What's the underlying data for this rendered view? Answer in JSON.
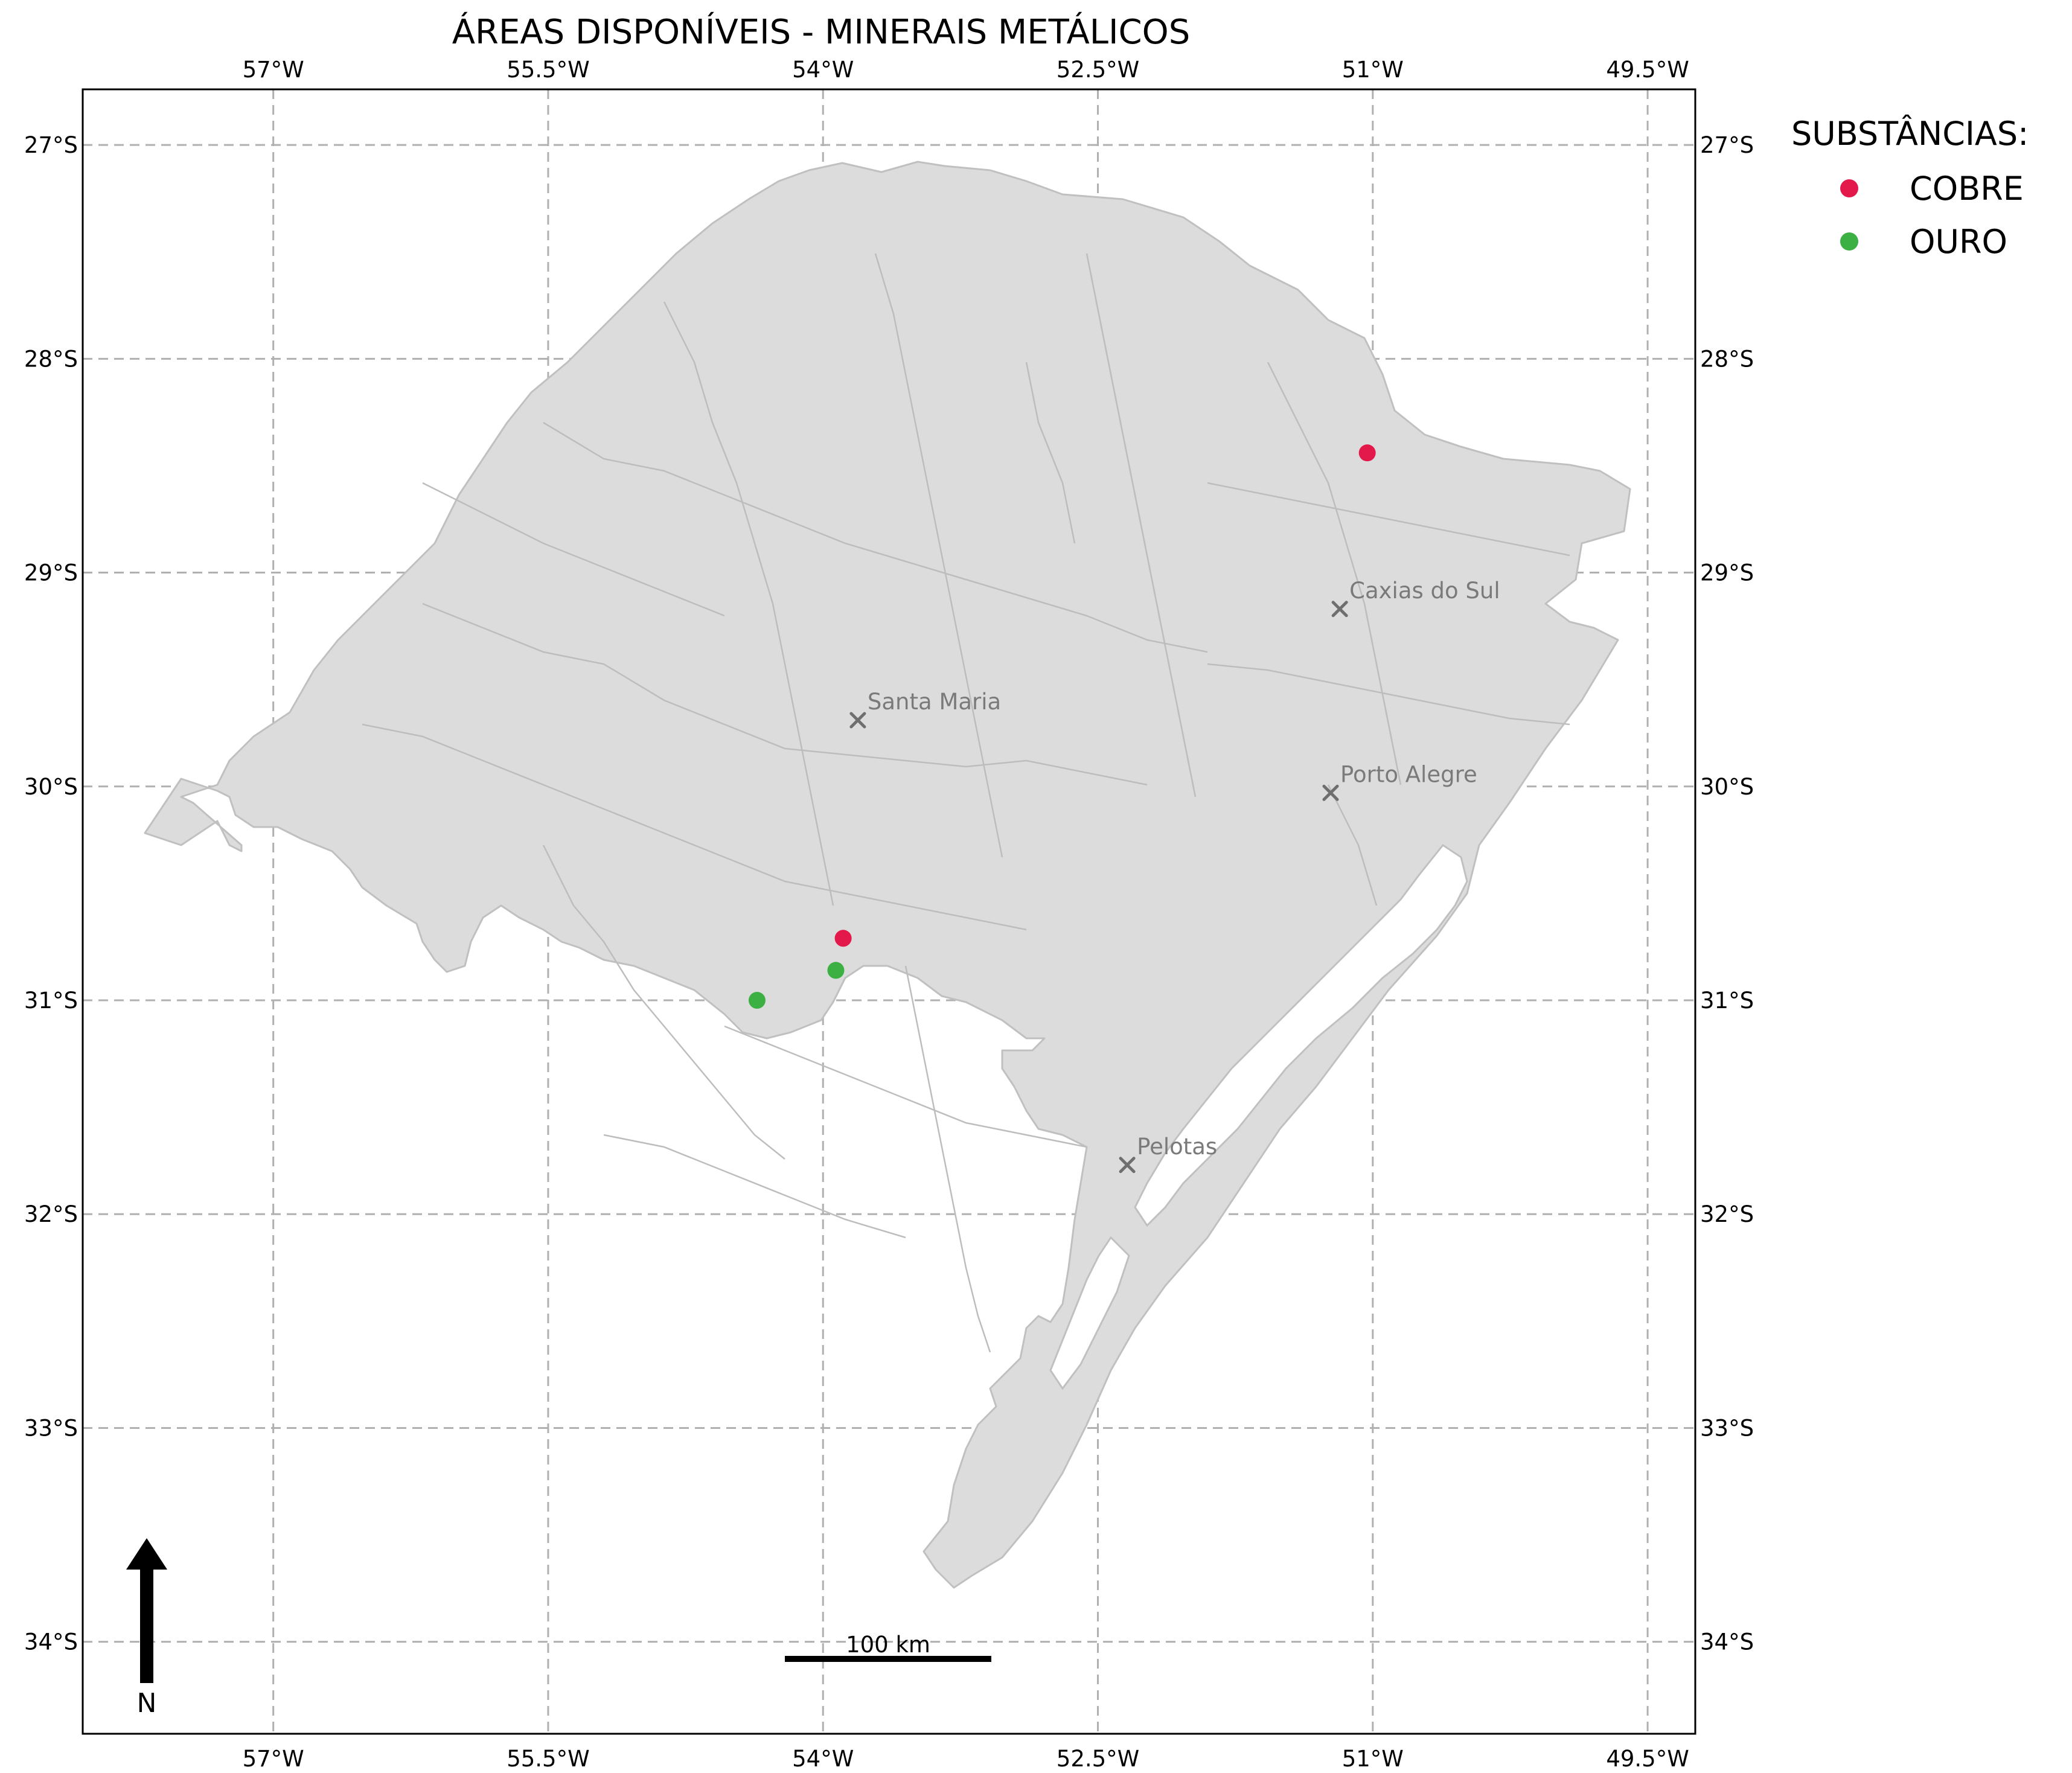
{
  "title": "ÁREAS DISPONÍVEIS - MINERAIS METÁLICOS",
  "axes": {
    "lon_ticks": [
      "57°W",
      "55.5°W",
      "54°W",
      "52.5°W",
      "51°W",
      "49.5°W"
    ],
    "lon_values": [
      -57,
      -55.5,
      -54,
      -52.5,
      -51,
      -49.5
    ],
    "lat_ticks": [
      "27°S",
      "28°S",
      "29°S",
      "30°S",
      "31°S",
      "32°S",
      "33°S",
      "34°S"
    ],
    "lat_values": [
      -27,
      -28,
      -29,
      -30,
      -31,
      -32,
      -33,
      -34
    ],
    "lon_range": [
      -58.04,
      -49.24
    ],
    "lat_range": [
      -34.43,
      -26.74
    ],
    "grid": true
  },
  "cities": [
    {
      "name": "Santa Maria",
      "lon": -53.81,
      "lat": -29.69
    },
    {
      "name": "Caxias do Sul",
      "lon": -51.18,
      "lat": -29.17
    },
    {
      "name": "Porto Alegre",
      "lon": -51.23,
      "lat": -30.03
    },
    {
      "name": "Pelotas",
      "lon": -52.34,
      "lat": -31.77
    }
  ],
  "legend": {
    "title": "SUBSTÂNCIAS:",
    "placement": "outside-right-top",
    "items": [
      {
        "label": "COBRE",
        "color": "#e3194c"
      },
      {
        "label": "OURO",
        "color": "#3cb043"
      }
    ]
  },
  "occurrences": [
    {
      "substance": "COBRE",
      "lon": -51.03,
      "lat": -28.44
    },
    {
      "substance": "COBRE",
      "lon": -53.89,
      "lat": -30.71
    },
    {
      "substance": "OURO",
      "lon": -53.93,
      "lat": -30.86
    },
    {
      "substance": "OURO",
      "lon": -54.36,
      "lat": -31.0
    }
  ],
  "scale_bar": {
    "label": "100 km"
  },
  "north_arrow": {
    "label": "N"
  },
  "colors": {
    "land": "#dcdcdc",
    "border": "#c0c0c0",
    "grid": "#b0b0b0"
  }
}
